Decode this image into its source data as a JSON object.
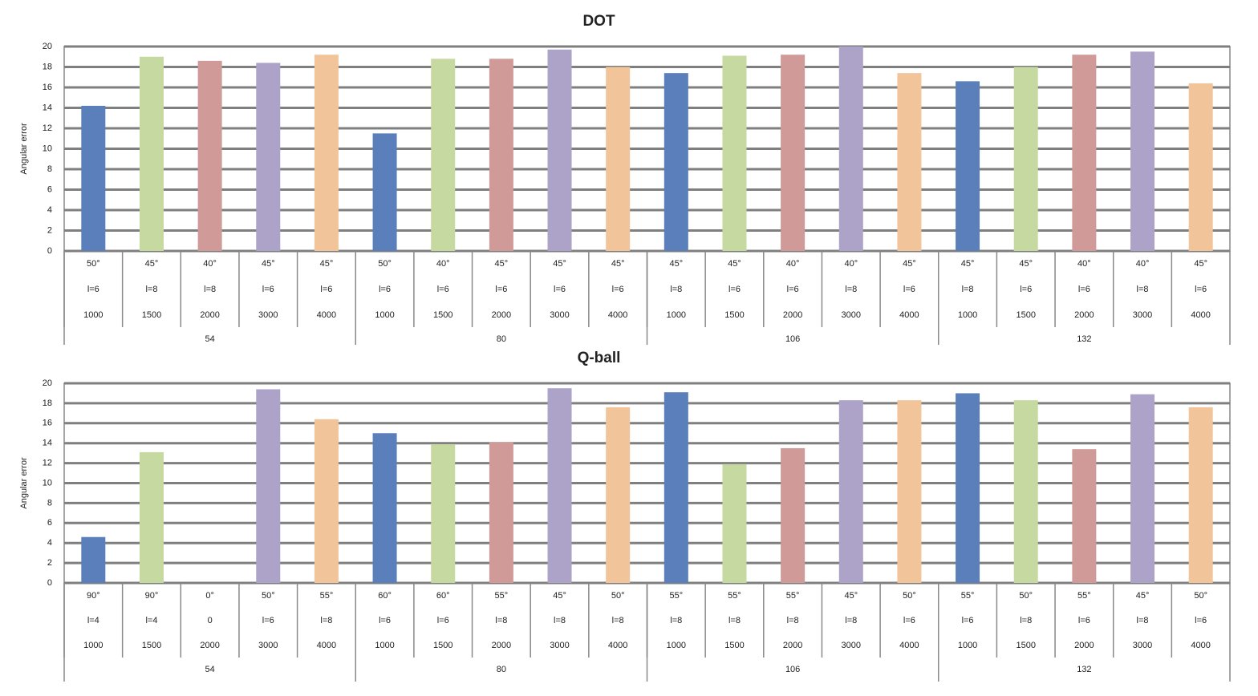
{
  "chart_data": [
    {
      "type": "bar",
      "title": "DOT",
      "ylabel": "Angular error",
      "categories": [
        [
          "50°",
          "l=6",
          "1000"
        ],
        [
          "45°",
          "l=8",
          "1500"
        ],
        [
          "40°",
          "l=8",
          "2000"
        ],
        [
          "45°",
          "l=6",
          "3000"
        ],
        [
          "45°",
          "l=6",
          "4000"
        ],
        [
          "50°",
          "l=6",
          "1000"
        ],
        [
          "40°",
          "l=6",
          "1500"
        ],
        [
          "45°",
          "l=6",
          "2000"
        ],
        [
          "45°",
          "l=6",
          "3000"
        ],
        [
          "45°",
          "l=6",
          "4000"
        ],
        [
          "45°",
          "l=8",
          "1000"
        ],
        [
          "45°",
          "l=6",
          "1500"
        ],
        [
          "40°",
          "l=6",
          "2000"
        ],
        [
          "40°",
          "l=8",
          "3000"
        ],
        [
          "45°",
          "l=6",
          "4000"
        ],
        [
          "45°",
          "l=8",
          "1000"
        ],
        [
          "45°",
          "l=6",
          "1500"
        ],
        [
          "40°",
          "l=6",
          "2000"
        ],
        [
          "40°",
          "l=8",
          "3000"
        ],
        [
          "45°",
          "l=6",
          "4000"
        ]
      ],
      "groups": [
        "54",
        "80",
        "106",
        "132"
      ],
      "values": [
        14.2,
        19.0,
        18.6,
        18.4,
        19.2,
        11.5,
        18.8,
        18.8,
        19.7,
        18.0,
        17.4,
        19.1,
        19.2,
        20.0,
        17.4,
        16.6,
        18.0,
        19.2,
        19.5,
        16.4
      ],
      "colors": [
        "#5b7fbb",
        "#c6d9a0",
        "#d09a98",
        "#ada2c7",
        "#f1c49a",
        "#5b7fbb",
        "#c6d9a0",
        "#d09a98",
        "#ada2c7",
        "#f1c49a",
        "#5b7fbb",
        "#c6d9a0",
        "#d09a98",
        "#ada2c7",
        "#f1c49a",
        "#5b7fbb",
        "#c6d9a0",
        "#d09a98",
        "#ada2c7",
        "#f1c49a"
      ],
      "ylim": [
        0,
        20
      ],
      "yticks": [
        0,
        2,
        4,
        6,
        8,
        10,
        12,
        14,
        16,
        18,
        20
      ],
      "grid": true
    },
    {
      "type": "bar",
      "title": "Q-ball",
      "ylabel": "Angular error",
      "categories": [
        [
          "90°",
          "l=4",
          "1000"
        ],
        [
          "90°",
          "l=4",
          "1500"
        ],
        [
          "0°",
          "0",
          "2000"
        ],
        [
          "50°",
          "l=6",
          "3000"
        ],
        [
          "55°",
          "l=8",
          "4000"
        ],
        [
          "60°",
          "l=6",
          "1000"
        ],
        [
          "60°",
          "l=6",
          "1500"
        ],
        [
          "55°",
          "l=8",
          "2000"
        ],
        [
          "45°",
          "l=8",
          "3000"
        ],
        [
          "50°",
          "l=8",
          "4000"
        ],
        [
          "55°",
          "l=8",
          "1000"
        ],
        [
          "55°",
          "l=8",
          "1500"
        ],
        [
          "55°",
          "l=8",
          "2000"
        ],
        [
          "45°",
          "l=8",
          "3000"
        ],
        [
          "50°",
          "l=6",
          "4000"
        ],
        [
          "55°",
          "l=6",
          "1000"
        ],
        [
          "50°",
          "l=8",
          "1500"
        ],
        [
          "55°",
          "l=6",
          "2000"
        ],
        [
          "45°",
          "l=8",
          "3000"
        ],
        [
          "50°",
          "l=6",
          "4000"
        ]
      ],
      "groups": [
        "54",
        "80",
        "106",
        "132"
      ],
      "values": [
        4.6,
        13.1,
        0,
        19.4,
        16.4,
        15.0,
        13.9,
        14.1,
        19.5,
        17.6,
        19.1,
        11.9,
        13.5,
        18.3,
        18.3,
        19.0,
        18.3,
        13.4,
        18.9,
        17.6
      ],
      "colors": [
        "#5b7fbb",
        "#c6d9a0",
        "#d09a98",
        "#ada2c7",
        "#f1c49a",
        "#5b7fbb",
        "#c6d9a0",
        "#d09a98",
        "#ada2c7",
        "#f1c49a",
        "#5b7fbb",
        "#c6d9a0",
        "#d09a98",
        "#ada2c7",
        "#f1c49a",
        "#5b7fbb",
        "#c6d9a0",
        "#d09a98",
        "#ada2c7",
        "#f1c49a"
      ],
      "ylim": [
        0,
        20
      ],
      "yticks": [
        0,
        2,
        4,
        6,
        8,
        10,
        12,
        14,
        16,
        18,
        20
      ],
      "grid": true
    }
  ]
}
